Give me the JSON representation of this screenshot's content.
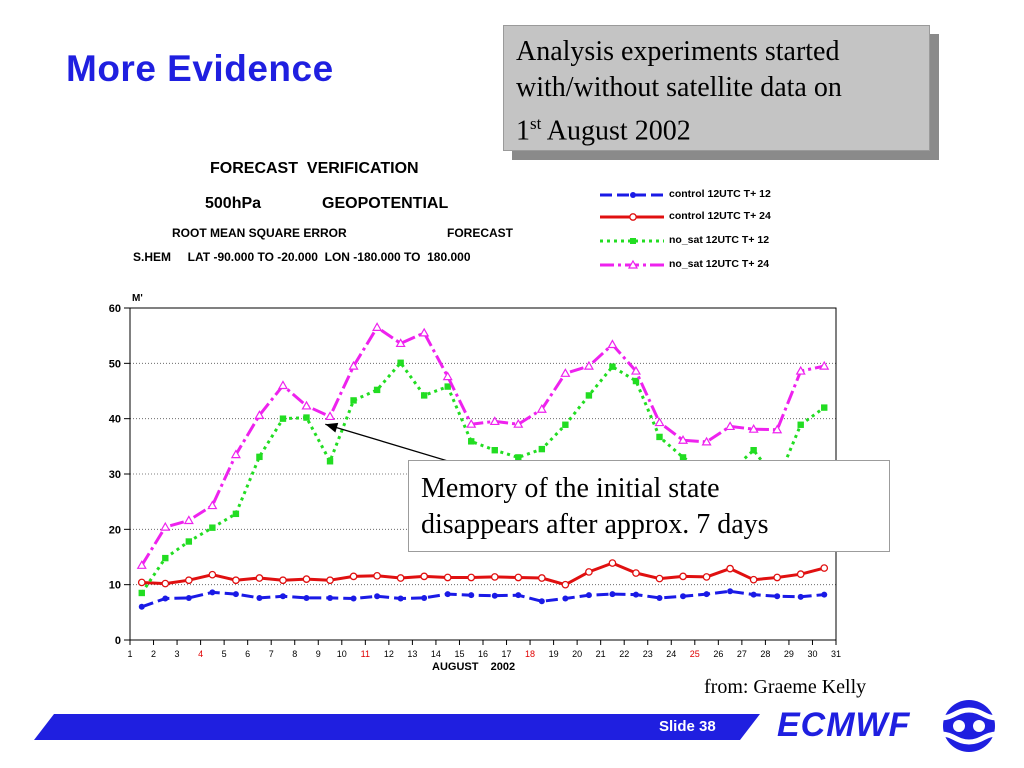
{
  "slide": {
    "title": "More Evidence",
    "callout_lines": [
      "Analysis experiments started",
      "with/without satellite data on",
      "1",
      "st",
      " August 2002"
    ],
    "note_lines": [
      "Memory of the initial state",
      "disappears after approx. 7 days"
    ],
    "source": "from: Graeme Kelly",
    "slide_number": "Slide 38",
    "brand": "ECMWF"
  },
  "chart_data": {
    "type": "line",
    "header": {
      "line1": "FORECAST  VERIFICATION",
      "line2a": "500hPa",
      "line2b": "GEOPOTENTIAL",
      "line3a": "ROOT MEAN SQUARE ERROR",
      "line3b": "FORECAST",
      "line4": "S.HEM     LAT -90.000 TO -20.000  LON -180.000 TO  180.000"
    },
    "ylabel": "M'",
    "xlabel": "AUGUST    2002",
    "ylim": [
      0,
      60
    ],
    "yticks": [
      0,
      10,
      20,
      30,
      40,
      50,
      60
    ],
    "xlim": [
      1,
      31
    ],
    "xticks": [
      1,
      2,
      3,
      4,
      5,
      6,
      7,
      8,
      9,
      10,
      11,
      12,
      13,
      14,
      15,
      16,
      17,
      18,
      19,
      20,
      21,
      22,
      23,
      24,
      25,
      26,
      27,
      28,
      29,
      30,
      31
    ],
    "weekend_ticks": [
      4,
      11,
      18,
      25
    ],
    "weekend_color": "#e00000",
    "grid": "horizontal dotted",
    "legend_position": "top-right",
    "x": [
      1.5,
      2.5,
      3.5,
      4.5,
      5.5,
      6.5,
      7.5,
      8.5,
      9.5,
      10.5,
      11.5,
      12.5,
      13.5,
      14.5,
      15.5,
      16.5,
      17.5,
      18.5,
      19.5,
      20.5,
      21.5,
      22.5,
      23.5,
      24.5,
      25.5,
      26.5,
      27.5,
      28.5,
      29.5,
      30.5
    ],
    "series": [
      {
        "name": "control 12UTC T+ 12",
        "color": "#1a1ae6",
        "dash": "12 5",
        "marker": "filled-circle",
        "values": [
          6,
          7.5,
          7.6,
          8.6,
          8.3,
          7.6,
          7.9,
          7.6,
          7.6,
          7.5,
          7.9,
          7.5,
          7.6,
          8.3,
          8.1,
          8.0,
          8.1,
          7.0,
          7.5,
          8.1,
          8.3,
          8.2,
          7.6,
          7.9,
          8.3,
          8.8,
          8.2,
          7.9,
          7.8,
          8.2
        ]
      },
      {
        "name": "control 12UTC T+ 24",
        "color": "#e01010",
        "dash": "",
        "marker": "open-circle",
        "values": [
          10.4,
          10.2,
          10.8,
          11.8,
          10.8,
          11.2,
          10.8,
          11.0,
          10.8,
          11.5,
          11.6,
          11.2,
          11.5,
          11.3,
          11.3,
          11.4,
          11.3,
          11.2,
          10.0,
          12.3,
          13.9,
          12.1,
          11.1,
          11.5,
          11.4,
          12.9,
          10.9,
          11.3,
          11.9,
          13.0
        ]
      },
      {
        "name": "no_sat 12UTC T+ 12",
        "color": "#22dd22",
        "dash": "3 4",
        "marker": "filled-square",
        "values": [
          8.5,
          14.8,
          17.8,
          20.3,
          22.8,
          33.1,
          40.0,
          40.2,
          32.3,
          43.3,
          45.2,
          50.1,
          44.2,
          45.8,
          35.9,
          34.3,
          33.0,
          34.5,
          38.9,
          44.2,
          49.4,
          46.8,
          36.7,
          33.0,
          30.3,
          30.4,
          34.3,
          28.7,
          38.9,
          42.0
        ]
      },
      {
        "name": "no_sat 12UTC T+ 24",
        "color": "#ee22ee",
        "dash": "14 4 3 4",
        "marker": "open-triangle",
        "values": [
          13.5,
          20.4,
          21.6,
          24.3,
          33.5,
          40.6,
          46.0,
          42.3,
          40.4,
          49.5,
          56.5,
          53.6,
          55.5,
          47.6,
          39.0,
          39.5,
          39.0,
          41.7,
          48.2,
          49.5,
          53.4,
          48.6,
          39.3,
          36.1,
          35.8,
          38.6,
          38.1,
          38.0,
          48.6,
          49.5
        ]
      }
    ]
  },
  "arrow": {
    "from_day": 18.3,
    "from_val": 27.5,
    "to_day": 9.3,
    "to_val": 39.0
  }
}
